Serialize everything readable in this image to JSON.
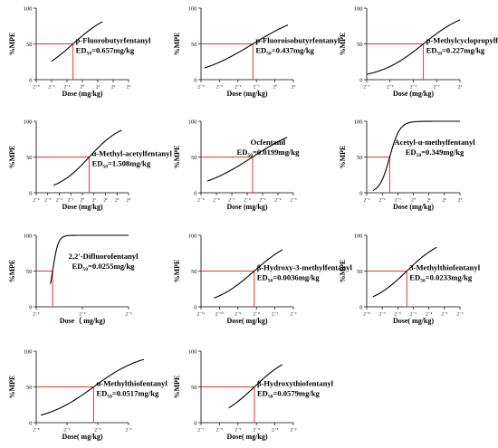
{
  "colors": {
    "curve": "#000000",
    "guide": "#e8352f",
    "axis": "#000000"
  },
  "chart_data": [
    {
      "type": "line",
      "title": "p-Fluorobutyrfentanyl",
      "ed_prefix": "ED",
      "ed_sub": "50",
      "ed_value": "=0.657mg/kg",
      "xlabel": "Dose (mg/kg)",
      "ylabel": "%MPE",
      "y_ticks": [
        "0",
        "50",
        "100"
      ],
      "x_tick_labels": [
        "2⁻³",
        "2⁻²",
        "2⁻¹",
        "2⁰",
        "2¹",
        "2²",
        "2³"
      ],
      "x_exponents": [
        -3,
        -2,
        -1,
        0,
        1,
        2,
        3
      ],
      "ed50_log2": -0.61,
      "hill": 1.1,
      "curve_from": -2.0,
      "curve_to": 1.3,
      "ylim": [
        0,
        100
      ]
    },
    {
      "type": "line",
      "title": "p-Fluoroisobutyrfentanyl",
      "ed_prefix": "ED",
      "ed_sub": "50",
      "ed_value": "=0.437mg/kg",
      "xlabel": "Dose (mg/kg)",
      "ylabel": "%MPE",
      "y_ticks": [
        "0",
        "50",
        "100"
      ],
      "x_tick_labels": [
        "2⁻⁴",
        "2⁻³",
        "2⁻²",
        "2⁻¹",
        "2⁰",
        "2¹"
      ],
      "x_exponents": [
        -4,
        -3,
        -2,
        -1,
        0,
        1
      ],
      "ed50_log2": -1.19,
      "hill": 0.9,
      "curve_from": -3.8,
      "curve_to": 0.7,
      "ylim": [
        0,
        100
      ]
    },
    {
      "type": "line",
      "title": "p-Methylcyclopropylfentanyl",
      "ed_prefix": "ED",
      "ed_sub": "50",
      "ed_value": "=0.227mg/kg",
      "xlabel": "Dose (mg/kg)",
      "ylabel": "%MPE",
      "y_ticks": [
        "0",
        "50",
        "100"
      ],
      "x_tick_labels": [
        "2⁻⁷",
        "2⁻⁵",
        "2⁻³",
        "2⁻¹",
        "2¹"
      ],
      "x_exponents": [
        -7,
        -5,
        -3,
        -1,
        1
      ],
      "ed50_log2": -2.14,
      "hill": 0.75,
      "curve_from": -7.0,
      "curve_to": 1.0,
      "ylim": [
        0,
        100
      ]
    },
    {
      "type": "line",
      "title": "α-Methyl-acetylfentanyl",
      "ed_prefix": "ED",
      "ed_sub": "50",
      "ed_value": "=1.508mg/kg",
      "xlabel": "Dose (mg/kg)",
      "ylabel": "%MPE",
      "y_ticks": [
        "0",
        "50",
        "100"
      ],
      "x_tick_labels": [
        "2⁻⁴",
        "2⁻³",
        "2⁻²",
        "2⁻¹",
        "2⁰",
        "2¹",
        "2²",
        "2³",
        "2⁴"
      ],
      "x_exponents": [
        -4,
        -3,
        -2,
        -1,
        0,
        1,
        2,
        3,
        4
      ],
      "ed50_log2": 0.59,
      "hill": 1.0,
      "curve_from": -2.5,
      "curve_to": 3.4,
      "ylim": [
        0,
        100
      ]
    },
    {
      "type": "line",
      "title": "Ocfentanil",
      "ed_prefix": "ED",
      "ed_sub": "50",
      "ed_value": "=0.0199mg/kg",
      "xlabel": "Dose (mg/kg)",
      "ylabel": "%MPE",
      "y_ticks": [
        "0",
        "50",
        "100"
      ],
      "x_tick_labels": [
        "2⁻⁹",
        "2⁻⁸",
        "2⁻⁷",
        "2⁻⁶",
        "2⁻⁵",
        "2⁻⁴",
        "2⁻³"
      ],
      "x_exponents": [
        -9,
        -8,
        -7,
        -6,
        -5,
        -4,
        -3
      ],
      "ed50_log2": -5.65,
      "hill": 0.8,
      "curve_from": -8.6,
      "curve_to": -3.4,
      "ylim": [
        0,
        100
      ]
    },
    {
      "type": "line",
      "title": "Acetyl-α-methylfentanyl",
      "ed_prefix": "ED",
      "ed_sub": "50",
      "ed_value": "=0.349mg/kg",
      "xlabel": "Dose (mg/kg)",
      "ylabel": "%MPE",
      "y_ticks": [
        "0",
        "50",
        "100"
      ],
      "x_tick_labels": [
        "2⁻³",
        "2⁻²",
        "2⁻¹",
        "2⁰",
        "2¹",
        "2²",
        "2³"
      ],
      "x_exponents": [
        -3,
        -2,
        -1,
        0,
        1,
        2,
        3
      ],
      "ed50_log2": -1.52,
      "hill": 4.5,
      "curve_from": -2.6,
      "curve_to": 3.0,
      "ylim": [
        0,
        100
      ]
    },
    {
      "type": "line",
      "title": "2,2'-Difluorofentanyl",
      "ed_prefix": "ED",
      "ed_sub": "50",
      "ed_value": "=0.0255mg/kg",
      "xlabel": "Dose（ mg/kg)",
      "ylabel": "%MPE",
      "y_ticks": [
        "0",
        "50",
        "100"
      ],
      "x_tick_labels": [
        "2⁻⁶",
        "2⁻⁴",
        "2⁻²"
      ],
      "x_exponents": [
        -6,
        -4,
        -2
      ],
      "ed50_log2": -5.29,
      "hill": 12,
      "curve_from": -5.38,
      "curve_to": -2.0,
      "ylim": [
        0,
        100
      ]
    },
    {
      "type": "line",
      "title": "β-Hydroxy-3-methylfentanyl",
      "ed_prefix": "ED",
      "ed_sub": "50",
      "ed_value": "=0.0036mg/kg",
      "xlabel": "Dose( mg/kg)",
      "ylabel": "%MPE",
      "y_ticks": [
        "0",
        "50",
        "100"
      ],
      "x_tick_labels": [
        "2⁻¹¹",
        "2⁻¹⁰",
        "2⁻⁹",
        "2⁻⁸",
        "2⁻⁷",
        "2⁻⁶"
      ],
      "x_exponents": [
        -11,
        -10,
        -9,
        -8,
        -7,
        -6
      ],
      "ed50_log2": -8.12,
      "hill": 1.3,
      "curve_from": -10.3,
      "curve_to": -6.6,
      "ylim": [
        0,
        100
      ]
    },
    {
      "type": "line",
      "title": "3-Methylthiofentanyl",
      "ed_prefix": "ED",
      "ed_sub": "50",
      "ed_value": "=0.0233mg/kg",
      "xlabel": "Dose( mg/kg)",
      "ylabel": "%MPE",
      "y_ticks": [
        "0",
        "50",
        "100"
      ],
      "x_tick_labels": [
        "2⁻⁸",
        "2⁻⁷",
        "2⁻⁶",
        "2⁻⁵",
        "2⁻⁴",
        "2⁻³",
        "2⁻²"
      ],
      "x_exponents": [
        -8,
        -7,
        -6,
        -5,
        -4,
        -3,
        -2
      ],
      "ed50_log2": -5.42,
      "hill": 1.2,
      "curve_from": -7.6,
      "curve_to": -3.5,
      "ylim": [
        0,
        100
      ]
    },
    {
      "type": "line",
      "title": "α-Methylthiofentanyl",
      "ed_prefix": "ED",
      "ed_sub": "50",
      "ed_value": "=0.0517mg/kg",
      "xlabel": "Dose( mg/kg)",
      "ylabel": "%MPE",
      "y_ticks": [
        "0",
        "50",
        "100"
      ],
      "x_tick_labels": [
        "2⁻⁸",
        "2⁻⁶",
        "2⁻⁴",
        "2⁻²"
      ],
      "x_exponents": [
        -8,
        -6,
        -4,
        -2
      ],
      "ed50_log2": -4.27,
      "hill": 0.9,
      "curve_from": -7.7,
      "curve_to": -1.0,
      "ylim": [
        0,
        100
      ]
    },
    {
      "type": "line",
      "title": "β-Hydroxythiofentanyl",
      "ed_prefix": "ED",
      "ed_sub": "50",
      "ed_value": "=0.0579mg/kg",
      "xlabel": "Dose( mg/kg)",
      "ylabel": "%MPE",
      "y_ticks": [
        "0",
        "50",
        "100"
      ],
      "x_tick_labels": [
        "2⁻⁷",
        "2⁻⁶",
        "2⁻⁵",
        "2⁻⁴",
        "2⁻³",
        "2⁻²"
      ],
      "x_exponents": [
        -7,
        -6,
        -5,
        -4,
        -3,
        -2
      ],
      "ed50_log2": -4.11,
      "hill": 1.4,
      "curve_from": -5.5,
      "curve_to": -2.6,
      "ylim": [
        0,
        100
      ]
    }
  ]
}
